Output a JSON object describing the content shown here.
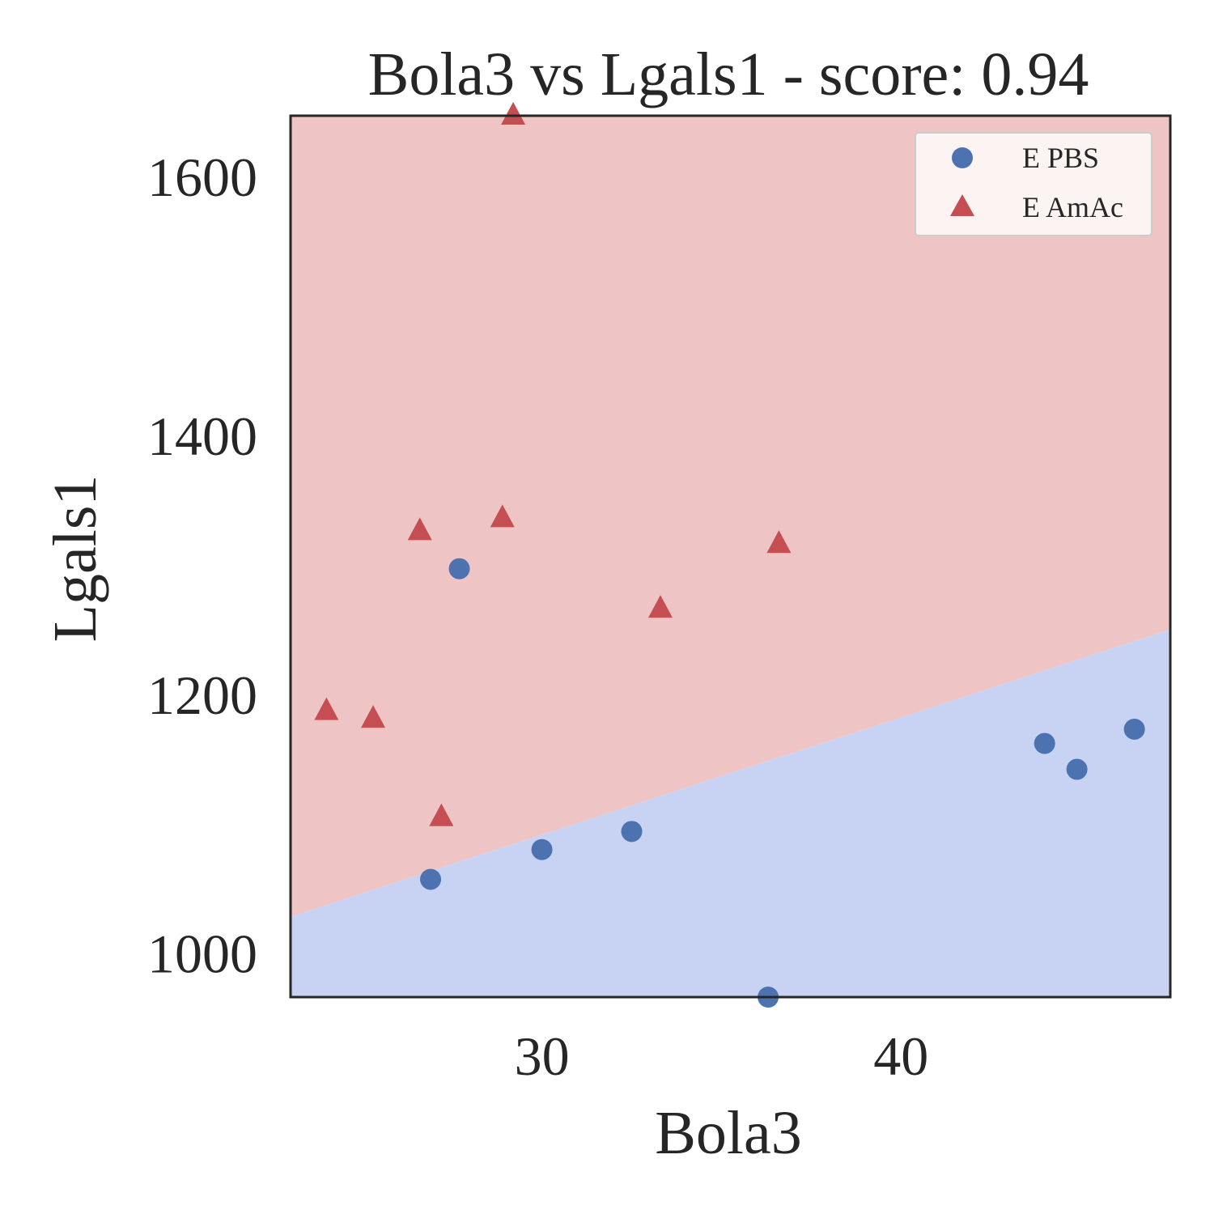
{
  "chart_data": {
    "type": "scatter",
    "title": "Bola3 vs Lgals1 - score: 0.94",
    "xlabel": "Bola3",
    "ylabel": "Lgals1",
    "xlim": [
      23.0,
      47.5
    ],
    "ylim": [
      966,
      1647
    ],
    "xticks": [
      30,
      40
    ],
    "yticks": [
      1000,
      1200,
      1400,
      1600
    ],
    "grid": false,
    "legend_position": "top-right",
    "decision_boundary": {
      "x": [
        23.0,
        47.5
      ],
      "y": [
        1028,
        1250
      ],
      "above_class": "E AmAc",
      "below_class": "E PBS"
    },
    "colors": {
      "E PBS": "#4c72b0",
      "E AmAc": "#c44e52",
      "region_above": "#eec5c4",
      "region_below": "#c8d2f2",
      "axes": "#262626"
    },
    "series": [
      {
        "name": "E PBS",
        "marker": "circle",
        "points": [
          [
            27.7,
            1297
          ],
          [
            26.9,
            1057
          ],
          [
            30.0,
            1080
          ],
          [
            32.5,
            1094
          ],
          [
            36.3,
            966
          ],
          [
            44.0,
            1162
          ],
          [
            44.9,
            1142
          ],
          [
            46.5,
            1173
          ]
        ]
      },
      {
        "name": "E AmAc",
        "marker": "triangle",
        "points": [
          [
            29.2,
            1647
          ],
          [
            26.6,
            1326
          ],
          [
            28.9,
            1336
          ],
          [
            33.3,
            1266
          ],
          [
            36.6,
            1316
          ],
          [
            24.0,
            1187
          ],
          [
            25.3,
            1181
          ],
          [
            27.2,
            1105
          ]
        ]
      }
    ]
  }
}
